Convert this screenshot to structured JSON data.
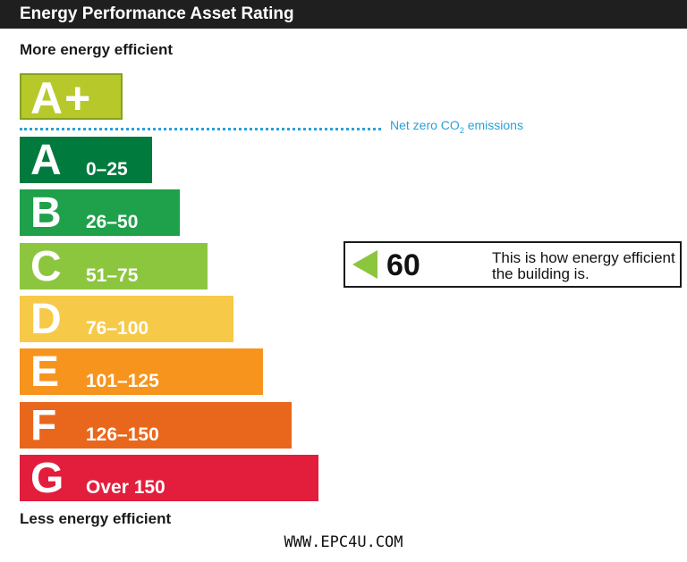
{
  "header": {
    "title": "Energy Performance Asset Rating"
  },
  "labels": {
    "top": "More energy efficient",
    "bottom": "Less energy efficient"
  },
  "footer": {
    "url": "WWW.EPC4U.COM"
  },
  "net_zero": {
    "text": "Net zero CO",
    "subscript": "2",
    "suffix": " emissions",
    "color": "#2aa0d6"
  },
  "rating": {
    "value": "60",
    "caption": "This is how energy efficient the building is.",
    "band": "C",
    "arrow_color": "#8cc63f"
  },
  "chart_data": {
    "type": "bar",
    "top_band": {
      "letter": "A+",
      "color": "#b7c92a"
    },
    "categories": [
      "A",
      "B",
      "C",
      "D",
      "E",
      "F",
      "G"
    ],
    "ranges": [
      "0–25",
      "26–50",
      "51–75",
      "76–100",
      "101–125",
      "126–150",
      "Over 150"
    ],
    "colors": [
      "#007a3d",
      "#1fa04a",
      "#8cc63f",
      "#f7c948",
      "#f7941d",
      "#e9671c",
      "#e31d3c"
    ],
    "rating_value": 60
  }
}
